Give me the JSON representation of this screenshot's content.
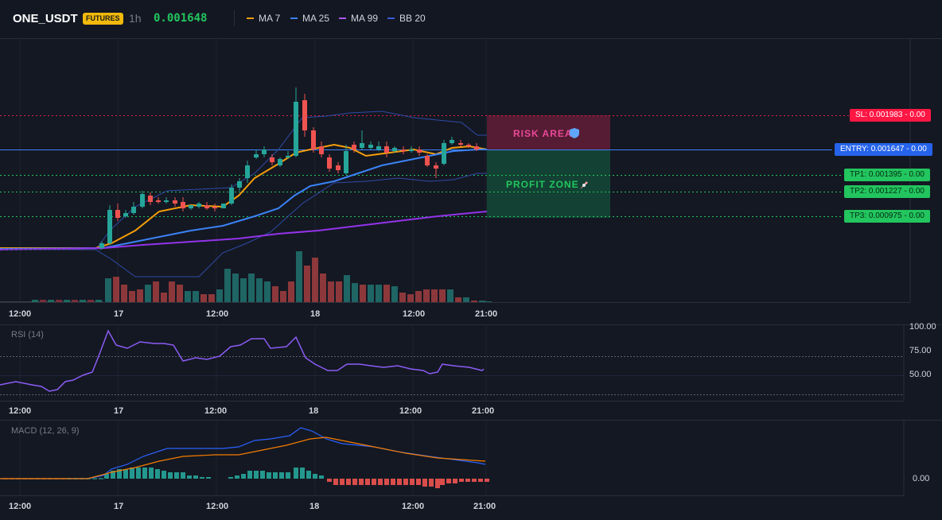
{
  "header": {
    "symbol": "ONE_USDT",
    "badge": "FUTURES",
    "timeframe": "1h",
    "price": "0.001648",
    "legend": [
      {
        "label": "MA 7",
        "color": "#f59e0b"
      },
      {
        "label": "MA 25",
        "color": "#3b82f6"
      },
      {
        "label": "MA 99",
        "color": "#a855f7"
      },
      {
        "label": "BB 20",
        "color": "#3b5bdb"
      }
    ]
  },
  "time_axis": [
    "12:00",
    "17",
    "12:00",
    "18",
    "12:00",
    "21:00"
  ],
  "levels": {
    "sl": {
      "label": "SL: 0.001983 - 0.00",
      "color": "#e11d48"
    },
    "entry": {
      "label": "ENTRY: 0.001647 - 0.00",
      "color": "#2563eb"
    },
    "tp1": {
      "label": "TP1: 0.001395 - 0.00",
      "color": "#22c55e"
    },
    "tp2": {
      "label": "TP2: 0.001227 - 0.00",
      "color": "#22c55e"
    },
    "tp3": {
      "label": "TP3: 0.000975 - 0.00",
      "color": "#22c55e"
    }
  },
  "zones": {
    "risk": "RISK AREA",
    "risk_icon": "shield-icon",
    "profit": "PROFIT ZONE",
    "profit_icon": "rocket-icon"
  },
  "rsi": {
    "title": "RSI (14)",
    "scale": [
      "100.00",
      "75.00",
      "50.00"
    ]
  },
  "macd": {
    "title": "MACD (12, 26, 9)",
    "scale": [
      "0.00"
    ]
  },
  "colors": {
    "up": "#26a69a",
    "down": "#ef5350",
    "bg": "#141822",
    "rsi": "#7e57c2",
    "macd": "#2962ff",
    "signal": "#f57c00"
  }
}
